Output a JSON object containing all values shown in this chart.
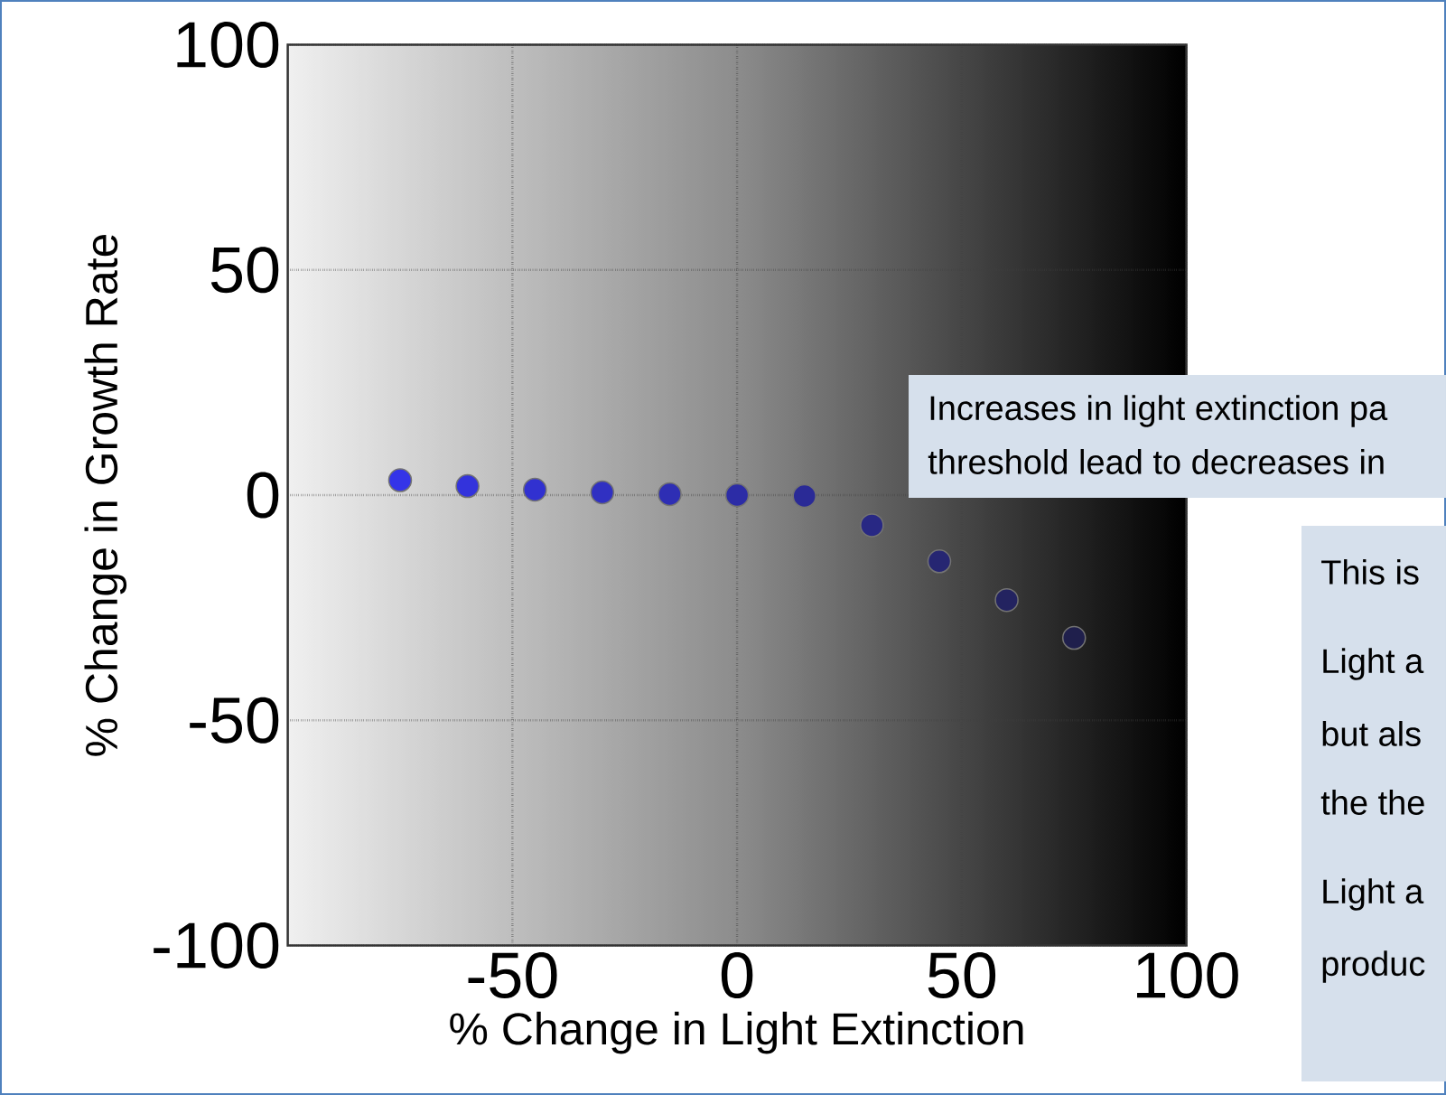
{
  "chart_data": {
    "type": "scatter",
    "xlabel": "% Change in Light Extinction",
    "ylabel": "% Change in Growth Rate",
    "x": [
      -75,
      -60,
      -45,
      -30,
      -15,
      0,
      15,
      30,
      45,
      60,
      75
    ],
    "values": [
      3.3,
      2,
      1.2,
      0.6,
      0.2,
      0,
      -0.2,
      -6.7,
      -14.7,
      -23.3,
      -31.7
    ],
    "colors": [
      "#3434e8",
      "#3333dc",
      "#3131d0",
      "#3030c2",
      "#2e2eb4",
      "#2c2ca6",
      "#2a2a96",
      "#282884",
      "#262672",
      "#232360",
      "#1f1f4c"
    ],
    "marker": "circle",
    "grid": true,
    "line_style": "dotted",
    "xlim": [
      -100,
      100
    ],
    "ylim": [
      -100,
      100
    ],
    "xticks": [
      -50,
      0,
      50,
      100
    ],
    "yticks": [
      -100,
      -50,
      0,
      50,
      100
    ],
    "annotations": [
      "Increases in light extinction pa",
      "threshold lead to decreases in",
      "This is",
      "Light a",
      "but als",
      "the the",
      "Light a",
      "produc"
    ]
  }
}
